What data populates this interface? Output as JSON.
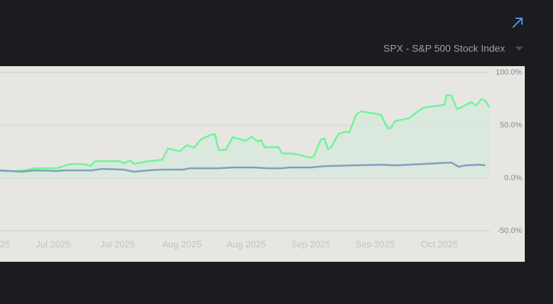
{
  "header": {
    "selector": "SPX - S&P 500 Stock Index"
  },
  "chart_data": {
    "type": "line",
    "x_labels": [
      "25",
      "Jul 2025",
      "Jul 2025",
      "Aug 2025",
      "Aug 2025",
      "Sep 2025",
      "Sep 2025",
      "Oct 2025"
    ],
    "xlim": [
      0,
      694
    ],
    "ylim": [
      -79.3,
      106
    ],
    "yticks": [
      {
        "value": 100,
        "label": "100.0%"
      },
      {
        "value": 50,
        "label": "50.0%"
      },
      {
        "value": 0,
        "label": "0.0%"
      },
      {
        "value": -50,
        "label": "-50.0%"
      }
    ],
    "grid": true,
    "series": [
      {
        "color": "#6ef59a",
        "fill": "#d6e8dc",
        "x": [
          0,
          20,
          35,
          50,
          80,
          100,
          120,
          128,
          135,
          145,
          170,
          175,
          185,
          190,
          210,
          230,
          238,
          255,
          265,
          275,
          285,
          300,
          305,
          310,
          320,
          330,
          348,
          357,
          365,
          370,
          375,
          395,
          400,
          410,
          420,
          440,
          445,
          455,
          460,
          465,
          470,
          480,
          490,
          495,
          505,
          512,
          540,
          550,
          555,
          560,
          580,
          590,
          600,
          630,
          633,
          640,
          648,
          655,
          668,
          675,
          682,
          688,
          694
        ],
        "values": [
          6.7,
          6.7,
          7.3,
          9.3,
          9.3,
          13.3,
          13.3,
          11.3,
          16,
          16,
          16,
          14,
          16.7,
          13.3,
          16,
          17.3,
          28,
          25.3,
          31.3,
          28.7,
          36.7,
          41.3,
          41.3,
          26.7,
          26.7,
          38.7,
          35.3,
          39.3,
          34.7,
          36,
          29.3,
          29.3,
          23.3,
          23.3,
          22.7,
          19.3,
          20.7,
          36.7,
          37.3,
          27.3,
          30,
          42,
          44,
          43.3,
          60,
          63.3,
          60,
          46.7,
          48,
          54,
          56.7,
          62,
          66.7,
          69.3,
          78.7,
          78,
          65.3,
          67.3,
          72,
          68.7,
          74.7,
          73.3,
          66.7
        ]
      },
      {
        "color": "#7f9fbc",
        "x": [
          0,
          30,
          50,
          80,
          90,
          130,
          145,
          175,
          190,
          210,
          230,
          260,
          270,
          310,
          330,
          360,
          380,
          400,
          410,
          440,
          460,
          500,
          540,
          560,
          580,
          620,
          640,
          650,
          660,
          680,
          688
        ],
        "values": [
          7.3,
          6,
          7.3,
          6.7,
          7.3,
          7.3,
          8.7,
          8,
          6,
          7.3,
          8,
          8,
          9.3,
          9.3,
          10,
          10,
          9.3,
          9.3,
          10,
          10,
          11.3,
          12,
          12.7,
          12,
          12.7,
          14,
          14.7,
          10.7,
          12,
          12.7,
          12
        ]
      }
    ]
  }
}
